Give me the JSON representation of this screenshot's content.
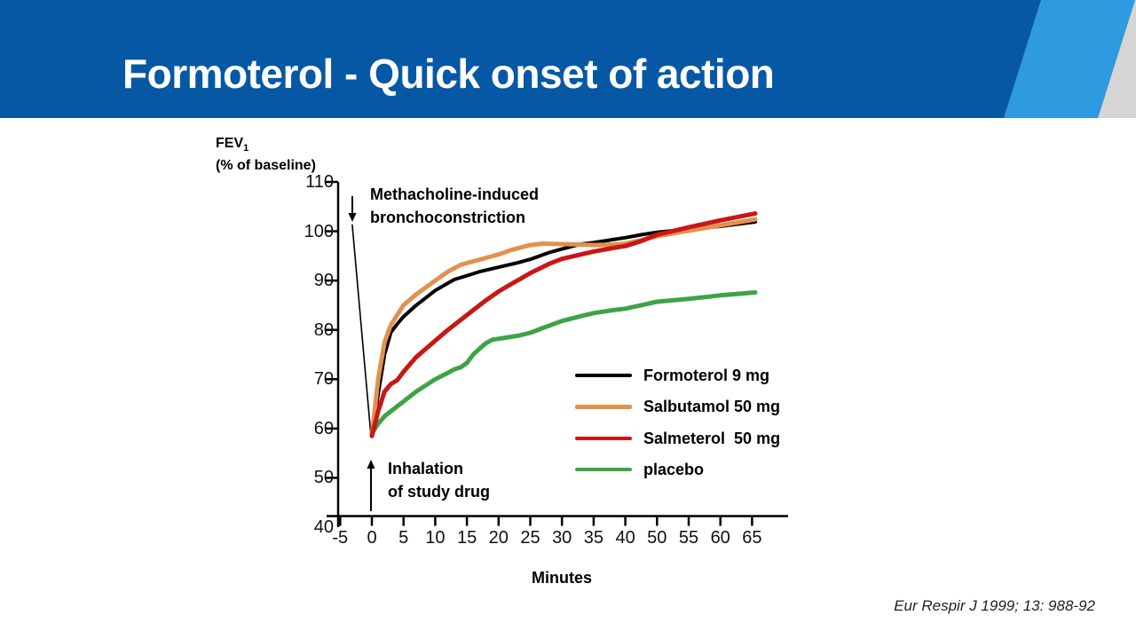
{
  "slide": {
    "title": "Formoterol - Quick onset of action",
    "citation": "Eur Respir J 1999; 13: 988-92",
    "colors": {
      "banner": "#0758A4",
      "banner_stripe_light": "#2E9BE0",
      "banner_stripe_gray": "#D5D5D5",
      "axis": "#000000"
    }
  },
  "chart_data": {
    "type": "line",
    "title": "",
    "xlabel": "Minutes",
    "ylabel": "FEV1 (% of baseline)",
    "grid": false,
    "legend_position": "inside-right-middle",
    "y_axis": {
      "label_main": "FEV",
      "label_sub": "1",
      "label_units": "(% of baseline)",
      "ticks": [
        110,
        100,
        90,
        80,
        70,
        60,
        50,
        40
      ],
      "range": [
        40,
        110
      ]
    },
    "x_axis": {
      "label": "Minutes",
      "ticks": [
        -5,
        0,
        5,
        10,
        15,
        20,
        25,
        30,
        35,
        40,
        50,
        55,
        60,
        65
      ],
      "note": "tick labels as printed on the original figure; 45 is skipped"
    },
    "annotations": {
      "methacholine": {
        "line1": "Methacholine-induced",
        "line2": "bronchoconstriction"
      },
      "inhalation": {
        "line1": "Inhalation",
        "line2": "of study drug"
      }
    },
    "drop_line": {
      "description": "methacholine-induced fall in FEV1 before drug inhalation",
      "points": [
        [
          -3.1,
          101.4
        ],
        [
          -0.15,
          58.6
        ]
      ]
    },
    "series": [
      {
        "name": "Formoterol 9 mg",
        "color": "#000000",
        "stroke_width": 4,
        "points": [
          [
            0,
            58.5
          ],
          [
            1,
            67
          ],
          [
            2,
            75
          ],
          [
            3,
            79.5
          ],
          [
            4,
            81.2
          ],
          [
            5,
            82.7
          ],
          [
            7,
            85
          ],
          [
            10,
            88
          ],
          [
            13,
            90.2
          ],
          [
            15,
            91
          ],
          [
            17,
            91.8
          ],
          [
            20,
            92.7
          ],
          [
            23,
            93.6
          ],
          [
            25,
            94.3
          ],
          [
            28,
            95.7
          ],
          [
            30,
            96.4
          ],
          [
            33,
            97.4
          ],
          [
            35,
            97.7
          ],
          [
            38,
            98.3
          ],
          [
            40,
            98.7
          ],
          [
            45,
            99.3
          ],
          [
            50,
            99.8
          ],
          [
            55,
            100.4
          ],
          [
            60,
            101
          ],
          [
            65.5,
            101.9
          ]
        ]
      },
      {
        "name": "Salbutamol 50 mg",
        "color": "#E2914E",
        "stroke_width": 5,
        "points": [
          [
            0,
            58.5
          ],
          [
            1,
            70
          ],
          [
            2,
            77.5
          ],
          [
            3,
            81
          ],
          [
            5,
            85
          ],
          [
            7,
            87.2
          ],
          [
            10,
            90
          ],
          [
            12,
            91.8
          ],
          [
            14,
            93.2
          ],
          [
            16,
            93.9
          ],
          [
            18,
            94.6
          ],
          [
            20,
            95.3
          ],
          [
            22,
            96.2
          ],
          [
            25,
            97.2
          ],
          [
            27,
            97.5
          ],
          [
            30,
            97.4
          ],
          [
            33,
            97.3
          ],
          [
            35,
            97.2
          ],
          [
            38,
            97.3
          ],
          [
            40,
            97.5
          ],
          [
            45,
            98.2
          ],
          [
            50,
            99
          ],
          [
            55,
            100.1
          ],
          [
            60,
            101.2
          ],
          [
            65.5,
            102.4
          ]
        ]
      },
      {
        "name": "Salmeterol  50 mg",
        "color": "#C91616",
        "stroke_width": 5,
        "points": [
          [
            0,
            58.5
          ],
          [
            1,
            63.5
          ],
          [
            2,
            67.5
          ],
          [
            3,
            69
          ],
          [
            4,
            69.8
          ],
          [
            5,
            71.5
          ],
          [
            7,
            74.5
          ],
          [
            10,
            77.8
          ],
          [
            12,
            80
          ],
          [
            15,
            83
          ],
          [
            18,
            86
          ],
          [
            20,
            87.8
          ],
          [
            22,
            89.3
          ],
          [
            25,
            91.5
          ],
          [
            28,
            93.4
          ],
          [
            30,
            94.4
          ],
          [
            33,
            95.3
          ],
          [
            35,
            95.9
          ],
          [
            38,
            96.6
          ],
          [
            40,
            97
          ],
          [
            45,
            98
          ],
          [
            50,
            99.3
          ],
          [
            55,
            100.8
          ],
          [
            60,
            102.2
          ],
          [
            65.5,
            103.6
          ]
        ]
      },
      {
        "name": "placebo",
        "color": "#3FA346",
        "stroke_width": 5,
        "points": [
          [
            0,
            59
          ],
          [
            1,
            61
          ],
          [
            2,
            62.5
          ],
          [
            3,
            63.5
          ],
          [
            5,
            65.5
          ],
          [
            7,
            67.5
          ],
          [
            10,
            70
          ],
          [
            12,
            71.3
          ],
          [
            13,
            72
          ],
          [
            14,
            72.4
          ],
          [
            15,
            73.3
          ],
          [
            16,
            75
          ],
          [
            17,
            76.2
          ],
          [
            18,
            77.3
          ],
          [
            19,
            78
          ],
          [
            21,
            78.4
          ],
          [
            23,
            78.8
          ],
          [
            25,
            79.4
          ],
          [
            27,
            80.4
          ],
          [
            30,
            81.8
          ],
          [
            33,
            82.8
          ],
          [
            35,
            83.4
          ],
          [
            38,
            84
          ],
          [
            40,
            84.3
          ],
          [
            45,
            85
          ],
          [
            50,
            85.7
          ],
          [
            55,
            86.3
          ],
          [
            60,
            87
          ],
          [
            65.5,
            87.6
          ]
        ]
      }
    ]
  }
}
